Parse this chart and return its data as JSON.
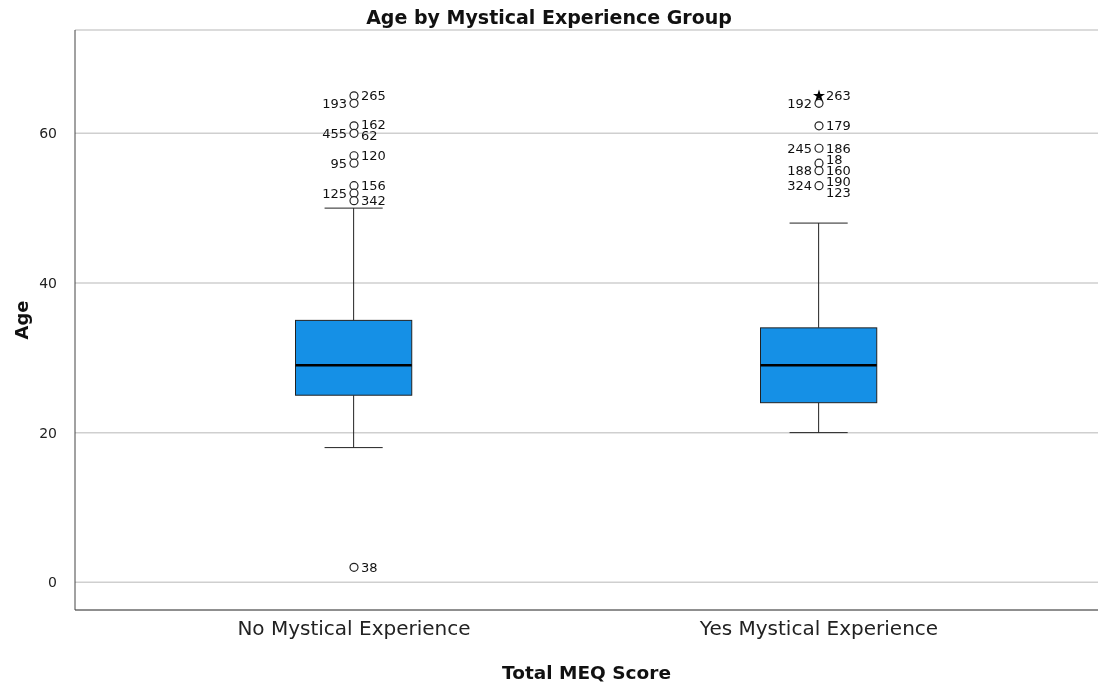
{
  "chart_data": {
    "type": "box",
    "title": "Age by Mystical Experience Group",
    "xlabel": "Total MEQ Score",
    "ylabel": "Age",
    "categories": [
      "No Mystical Experience",
      "Yes Mystical Experience"
    ],
    "series": [
      {
        "type": "box",
        "color": "#1590e6",
        "boxes": [
          {
            "low": 18,
            "q1": 25,
            "median": 29,
            "q3": 35,
            "high": 50
          },
          {
            "low": 20,
            "q1": 24,
            "median": 29,
            "q3": 34,
            "high": 48
          }
        ]
      },
      {
        "type": "scatter",
        "marker": "circle",
        "color": "#222222",
        "x": [
          "No Mystical Experience",
          "No Mystical Experience",
          "No Mystical Experience",
          "No Mystical Experience",
          "No Mystical Experience",
          "No Mystical Experience",
          "No Mystical Experience",
          "No Mystical Experience",
          "No Mystical Experience",
          "No Mystical Experience",
          "Yes Mystical Experience",
          "Yes Mystical Experience",
          "Yes Mystical Experience",
          "Yes Mystical Experience",
          "Yes Mystical Experience",
          "Yes Mystical Experience"
        ],
        "values": [
          65,
          64,
          61,
          60,
          57,
          56,
          53,
          52,
          51,
          2,
          64,
          61,
          58,
          56,
          55,
          53
        ]
      },
      {
        "type": "scatter",
        "marker": "star",
        "color": "#000000",
        "x": [
          "Yes Mystical Experience"
        ],
        "values": [
          65
        ]
      }
    ],
    "ylim": [
      -3.7,
      73.8
    ],
    "yticks": [
      0,
      20,
      40,
      60
    ],
    "grid": "y",
    "annotations": [
      {
        "text": "265",
        "x": "No Mystical Experience",
        "y": 65
      },
      {
        "text": "193",
        "x": "No Mystical Experience",
        "y": 64
      },
      {
        "text": "162",
        "x": "No Mystical Experience",
        "y": 61
      },
      {
        "text": "455",
        "x": "No Mystical Experience",
        "y": 60
      },
      {
        "text": "62",
        "x": "No Mystical Experience",
        "y": 60
      },
      {
        "text": "120",
        "x": "No Mystical Experience",
        "y": 57
      },
      {
        "text": "95",
        "x": "No Mystical Experience",
        "y": 56
      },
      {
        "text": "156",
        "x": "No Mystical Experience",
        "y": 53
      },
      {
        "text": "125",
        "x": "No Mystical Experience",
        "y": 52
      },
      {
        "text": "342",
        "x": "No Mystical Experience",
        "y": 51
      },
      {
        "text": "38",
        "x": "No Mystical Experience",
        "y": 2
      },
      {
        "text": "263",
        "x": "Yes Mystical Experience",
        "y": 65
      },
      {
        "text": "192",
        "x": "Yes Mystical Experience",
        "y": 64
      },
      {
        "text": "179",
        "x": "Yes Mystical Experience",
        "y": 61
      },
      {
        "text": "186",
        "x": "Yes Mystical Experience",
        "y": 58
      },
      {
        "text": "245",
        "x": "Yes Mystical Experience",
        "y": 58
      },
      {
        "text": "18",
        "x": "Yes Mystical Experience",
        "y": 56
      },
      {
        "text": "188",
        "x": "Yes Mystical Experience",
        "y": 55
      },
      {
        "text": "160",
        "x": "Yes Mystical Experience",
        "y": 55
      },
      {
        "text": "190",
        "x": "Yes Mystical Experience",
        "y": 53
      },
      {
        "text": "324",
        "x": "Yes Mystical Experience",
        "y": 53
      },
      {
        "text": "123",
        "x": "Yes Mystical Experience",
        "y": 53
      }
    ]
  }
}
